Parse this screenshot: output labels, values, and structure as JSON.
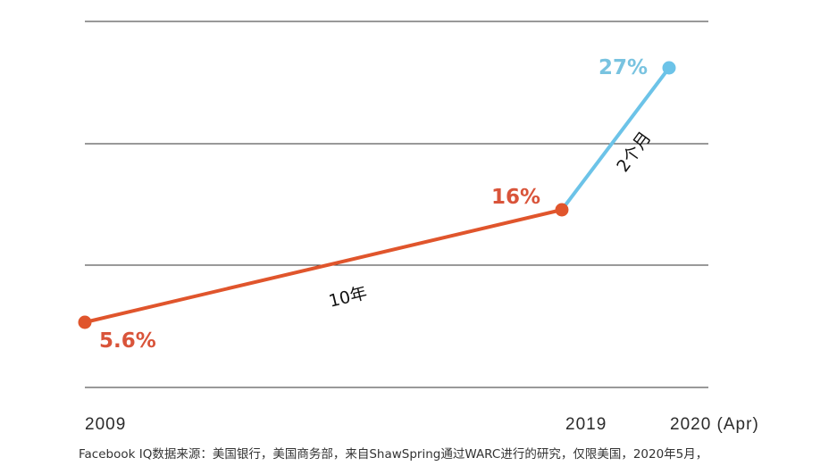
{
  "chart_data": {
    "type": "line",
    "title": "",
    "xlabel": "",
    "ylabel": "",
    "ylim": [
      0,
      30
    ],
    "grid": true,
    "x_ticks": [
      "2009",
      "2019",
      "2020 (Apr)"
    ],
    "series": [
      {
        "name": "10年",
        "color": "#E0552C",
        "points": [
          {
            "x": 2009,
            "y": 5.6,
            "label": "5.6%"
          },
          {
            "x": 2019,
            "y": 16,
            "label": "16%"
          }
        ]
      },
      {
        "name": "2个月",
        "color": "#6CC3E8",
        "points": [
          {
            "x": 2019,
            "y": 16
          },
          {
            "x": 2020.25,
            "y": 27,
            "label": "27%"
          }
        ]
      }
    ],
    "annotations": [
      "10年",
      "2个月"
    ]
  },
  "colors": {
    "orange": "#E0552C",
    "orange_label": "#D9543A",
    "blue": "#6CC3E8",
    "blue_label": "#79C3E0",
    "gridline": "#333333"
  },
  "footer": {
    "source": "Facebook IQ数据来源：美国银行，美国商务部，来自ShawSpring通过WARC进行的研究，仅限美国，2020年5月，"
  }
}
